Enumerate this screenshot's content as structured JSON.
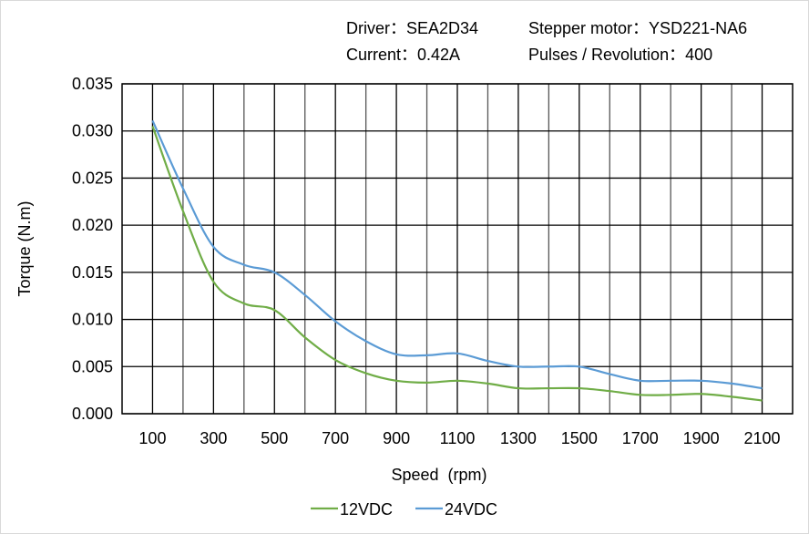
{
  "header": {
    "driver": "Driver：SEA2D34",
    "motor": "Stepper motor：YSD221-NA6",
    "current": "Current：0.42A",
    "pulses": "Pulses / Revolution：400"
  },
  "chart_data": {
    "type": "line",
    "title": "",
    "xlabel": "Speed  (rpm)",
    "ylabel": "Torque (N.m)",
    "xlim": [
      0,
      2200
    ],
    "ylim": [
      0,
      0.035
    ],
    "xticks": [
      "100",
      "300",
      "500",
      "700",
      "900",
      "1100",
      "1300",
      "1500",
      "1700",
      "1900",
      "2100"
    ],
    "yticks": [
      "0.000",
      "0.005",
      "0.010",
      "0.015",
      "0.020",
      "0.025",
      "0.030",
      "0.035"
    ],
    "grid": true,
    "legend": "bottom",
    "x": [
      100,
      200,
      300,
      400,
      500,
      600,
      700,
      800,
      900,
      1000,
      1100,
      1200,
      1300,
      1400,
      1500,
      1600,
      1700,
      1800,
      1900,
      2000,
      2100
    ],
    "series": [
      {
        "name": "12VDC",
        "color": "#70ad47",
        "values": [
          0.0305,
          0.0215,
          0.014,
          0.0117,
          0.011,
          0.0081,
          0.0057,
          0.0043,
          0.0035,
          0.0033,
          0.0035,
          0.0032,
          0.0027,
          0.0027,
          0.0027,
          0.0024,
          0.002,
          0.002,
          0.0021,
          0.0018,
          0.0014
        ]
      },
      {
        "name": "24VDC",
        "color": "#5b9bd5",
        "values": [
          0.0311,
          0.0239,
          0.0177,
          0.0158,
          0.015,
          0.0126,
          0.0098,
          0.0077,
          0.0063,
          0.0062,
          0.0064,
          0.0056,
          0.005,
          0.005,
          0.005,
          0.0042,
          0.0035,
          0.0035,
          0.0035,
          0.0032,
          0.0027
        ]
      }
    ]
  }
}
